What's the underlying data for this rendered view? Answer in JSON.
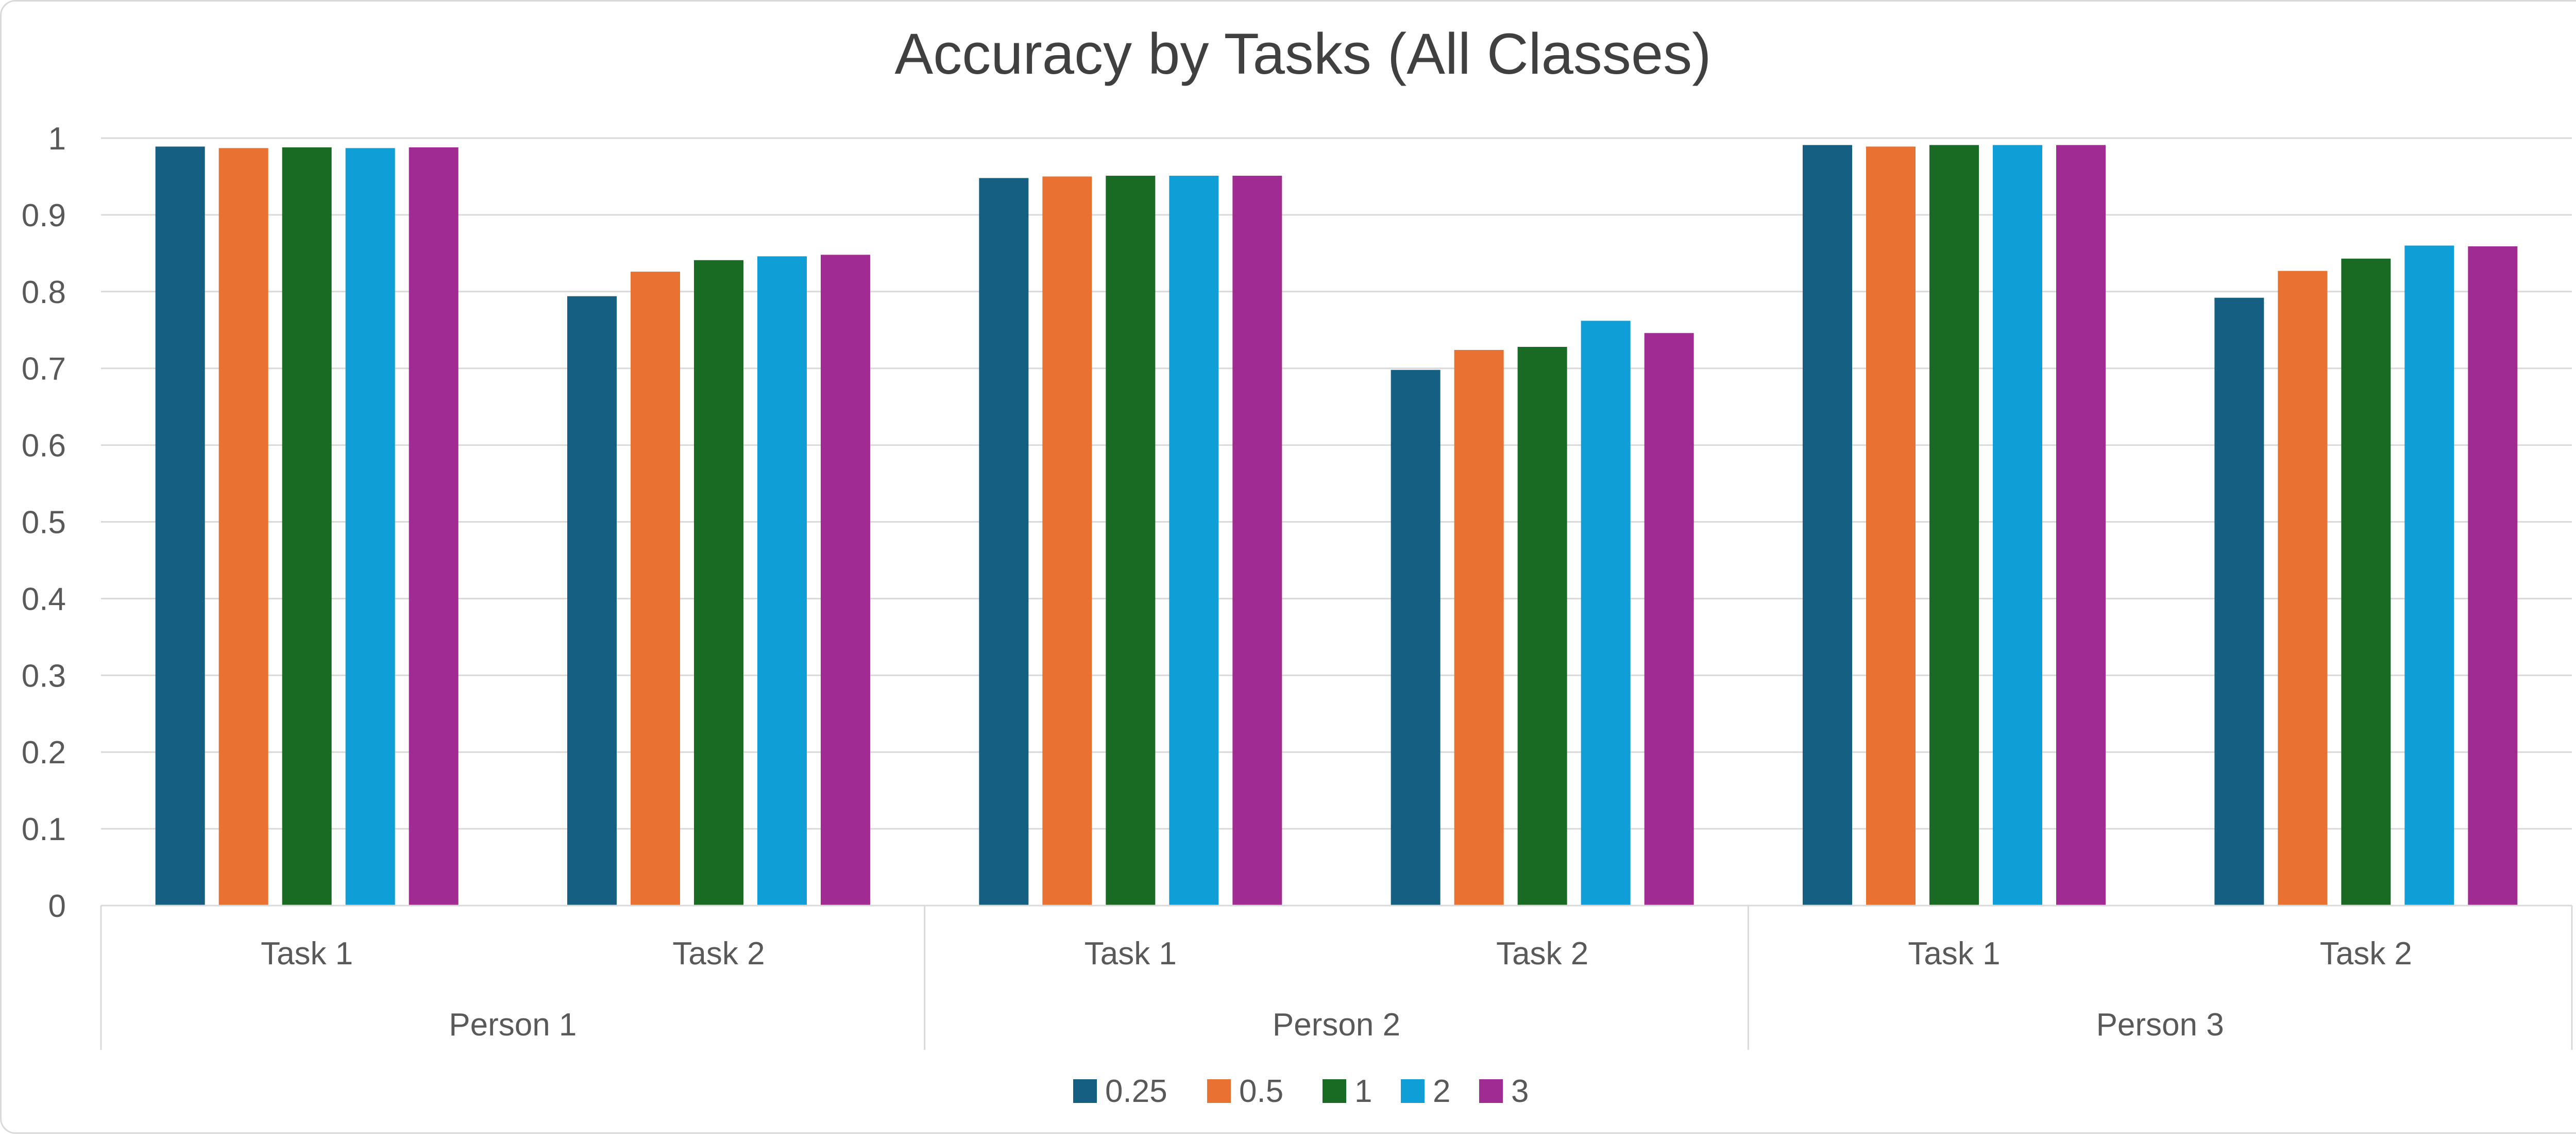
{
  "chart_data": {
    "type": "bar",
    "title": "Accuracy by Tasks (All Classes)",
    "xlabel": "",
    "ylabel": "",
    "ylim": [
      0,
      1
    ],
    "yticks": [
      "0",
      "0.1",
      "0.2",
      "0.3",
      "0.4",
      "0.5",
      "0.6",
      "0.7",
      "0.8",
      "0.9",
      "1"
    ],
    "grid": true,
    "legend_position": "bottom",
    "groups": [
      "Person 1",
      "Person 2",
      "Person 3"
    ],
    "categories": [
      "Task 1",
      "Task 2",
      "Task 1",
      "Task 2",
      "Task 1",
      "Task 2"
    ],
    "category_group": [
      0,
      0,
      1,
      1,
      2,
      2
    ],
    "series": [
      {
        "name": "0.25",
        "color": "#156082",
        "values": [
          0.989,
          0.794,
          0.948,
          0.698,
          0.991,
          0.792
        ]
      },
      {
        "name": "0.5",
        "color": "#E97132",
        "values": [
          0.987,
          0.826,
          0.95,
          0.724,
          0.989,
          0.827
        ]
      },
      {
        "name": "1",
        "color": "#196B24",
        "values": [
          0.988,
          0.841,
          0.951,
          0.728,
          0.991,
          0.843
        ]
      },
      {
        "name": "2",
        "color": "#0F9ED5",
        "values": [
          0.987,
          0.846,
          0.951,
          0.762,
          0.991,
          0.86
        ]
      },
      {
        "name": "3",
        "color": "#A02B93",
        "values": [
          0.988,
          0.848,
          0.951,
          0.746,
          0.991,
          0.859
        ]
      }
    ]
  }
}
